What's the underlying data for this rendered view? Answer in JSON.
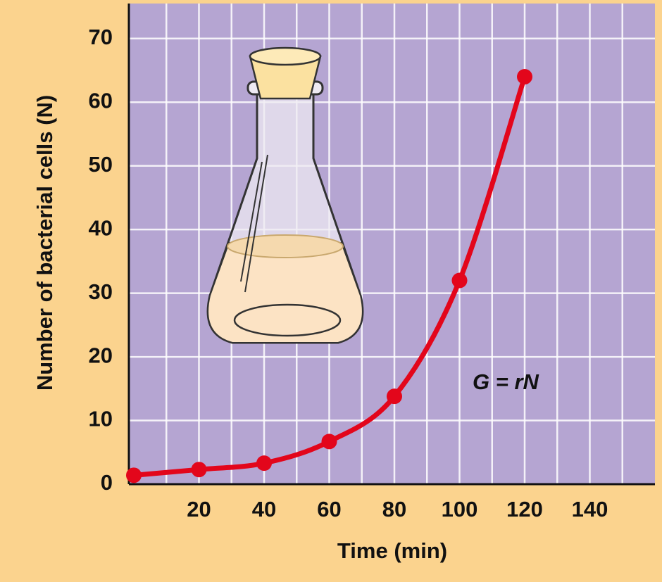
{
  "chart_data": {
    "type": "line",
    "x_label": "Time (min)",
    "y_label": "Number of bacterial cells (N)",
    "annotation": "G = rN",
    "x": [
      0,
      20,
      40,
      60,
      80,
      100,
      120
    ],
    "series": [
      {
        "color": "#e3061b",
        "values": [
          1.4,
          2.3,
          3.3,
          6.7,
          13.8,
          32,
          64
        ]
      }
    ],
    "xlim": [
      0,
      160
    ],
    "xticks": [
      20,
      40,
      60,
      80,
      100,
      120,
      140
    ],
    "x_grid": [
      10,
      20,
      30,
      40,
      50,
      60,
      70,
      80,
      90,
      100,
      110,
      120,
      130,
      140,
      150
    ],
    "ylim": [
      0,
      75.5
    ],
    "yticks": [
      0,
      10,
      20,
      30,
      40,
      50,
      60,
      70
    ],
    "grid": true
  }
}
